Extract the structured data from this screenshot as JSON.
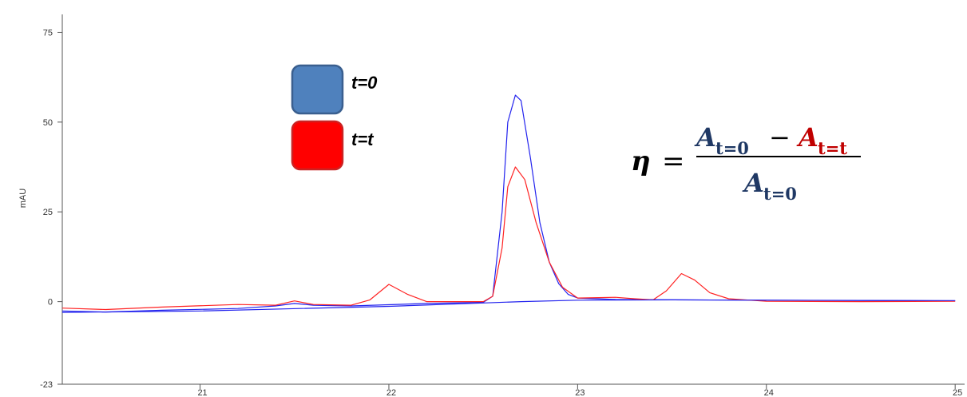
{
  "chart_data": {
    "type": "line",
    "title": "",
    "xlabel": "",
    "ylabel": "mAU",
    "xlim": [
      20.27,
      25.05
    ],
    "ylim": [
      -23,
      80
    ],
    "x_ticks": [
      21,
      22,
      23,
      24,
      25
    ],
    "y_ticks": [
      -23,
      0,
      25,
      50,
      75
    ],
    "grid": false,
    "legend_position": "top-left",
    "series": [
      {
        "name": "t=0",
        "color": "#2222ee",
        "points": [
          [
            20.27,
            -2.6
          ],
          [
            20.5,
            -2.9
          ],
          [
            20.8,
            -2.4
          ],
          [
            21.2,
            -1.9
          ],
          [
            21.4,
            -1.2
          ],
          [
            21.5,
            -0.5
          ],
          [
            21.6,
            -1.0
          ],
          [
            21.8,
            -1.2
          ],
          [
            22.2,
            -0.5
          ],
          [
            22.4,
            -0.3
          ],
          [
            22.5,
            -0.2
          ],
          [
            22.55,
            1.5
          ],
          [
            22.6,
            25
          ],
          [
            22.63,
            50
          ],
          [
            22.67,
            57.5
          ],
          [
            22.7,
            56
          ],
          [
            22.75,
            40
          ],
          [
            22.8,
            22
          ],
          [
            22.85,
            11
          ],
          [
            22.9,
            5
          ],
          [
            22.95,
            2
          ],
          [
            23.0,
            1.0
          ],
          [
            23.2,
            0.6
          ],
          [
            23.5,
            0.5
          ],
          [
            24.0,
            0.4
          ],
          [
            24.5,
            0.3
          ],
          [
            25.0,
            0.2
          ]
        ]
      },
      {
        "name": "t=t",
        "color": "#ff2222",
        "points": [
          [
            20.27,
            -1.8
          ],
          [
            20.5,
            -2.2
          ],
          [
            20.8,
            -1.5
          ],
          [
            21.2,
            -0.8
          ],
          [
            21.4,
            -1.0
          ],
          [
            21.5,
            0.2
          ],
          [
            21.6,
            -0.8
          ],
          [
            21.8,
            -1.0
          ],
          [
            21.9,
            0.5
          ],
          [
            22.0,
            4.8
          ],
          [
            22.1,
            2.0
          ],
          [
            22.2,
            0.0
          ],
          [
            22.4,
            0.0
          ],
          [
            22.5,
            0.0
          ],
          [
            22.55,
            1.5
          ],
          [
            22.6,
            15
          ],
          [
            22.63,
            32
          ],
          [
            22.67,
            37.5
          ],
          [
            22.72,
            34
          ],
          [
            22.78,
            22
          ],
          [
            22.85,
            11
          ],
          [
            22.92,
            4
          ],
          [
            23.0,
            1.0
          ],
          [
            23.2,
            1.2
          ],
          [
            23.3,
            0.8
          ],
          [
            23.4,
            0.5
          ],
          [
            23.47,
            3
          ],
          [
            23.55,
            7.8
          ],
          [
            23.62,
            6
          ],
          [
            23.7,
            2.5
          ],
          [
            23.8,
            0.8
          ],
          [
            24.0,
            0.1
          ],
          [
            24.5,
            0.0
          ],
          [
            25.0,
            0.1
          ]
        ]
      },
      {
        "name": "",
        "color": "#2222ee",
        "points": [
          [
            20.27,
            -3.0
          ],
          [
            21.0,
            -2.6
          ],
          [
            22.0,
            -1.3
          ],
          [
            22.7,
            0.0
          ],
          [
            23.0,
            0.4
          ],
          [
            23.5,
            0.5
          ],
          [
            24.0,
            0.4
          ],
          [
            25.0,
            0.3
          ]
        ]
      }
    ],
    "legend": [
      {
        "label": "t=0",
        "color": "#4f81bd",
        "stroke": "#3a5f8f"
      },
      {
        "label": "t=t",
        "color": "#ff0000",
        "stroke": "#cc2222"
      }
    ],
    "annotation": {
      "lhs": "η",
      "eq": "=",
      "num_a_var": "A",
      "num_a_sub": "t=0",
      "num_op": "−",
      "num_b_var": "A",
      "num_b_sub": "t=t",
      "den_var": "A",
      "den_sub": "t=0",
      "color_primary": "#1f3864",
      "color_secondary": "#c00000"
    }
  }
}
